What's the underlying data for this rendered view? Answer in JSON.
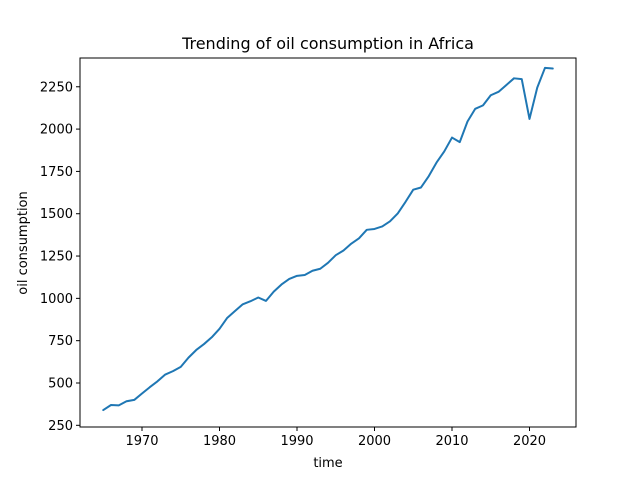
{
  "chart_data": {
    "type": "line",
    "title": "Trending of oil consumption in Africa",
    "xlabel": "time",
    "ylabel": "oil consumption",
    "xlim": [
      1962,
      2026
    ],
    "ylim": [
      240,
      2420
    ],
    "xticks": [
      1970,
      1980,
      1990,
      2000,
      2010,
      2020
    ],
    "yticks": [
      250,
      500,
      750,
      1000,
      1250,
      1500,
      1750,
      2000,
      2250
    ],
    "grid": false,
    "line_color": "#1f77b4",
    "series": [
      {
        "x": [
          1965,
          1966,
          1967,
          1968,
          1969,
          1970,
          1971,
          1972,
          1973,
          1974,
          1975,
          1976,
          1977,
          1978,
          1979,
          1980,
          1981,
          1982,
          1983,
          1984,
          1985,
          1986,
          1987,
          1988,
          1989,
          1990,
          1991,
          1992,
          1993,
          1994,
          1995,
          1996,
          1997,
          1998,
          1999,
          2000,
          2001,
          2002,
          2003,
          2004,
          2005,
          2006,
          2007,
          2008,
          2009,
          2010,
          2011,
          2012,
          2013,
          2014,
          2015,
          2016,
          2017,
          2018,
          2019,
          2020,
          2021,
          2022,
          2023
        ],
        "values": [
          340,
          370,
          368,
          392,
          400,
          438,
          475,
          510,
          550,
          570,
          595,
          650,
          695,
          730,
          770,
          820,
          885,
          925,
          965,
          983,
          1005,
          985,
          1040,
          1082,
          1115,
          1133,
          1138,
          1163,
          1175,
          1210,
          1255,
          1283,
          1323,
          1355,
          1405,
          1410,
          1425,
          1455,
          1502,
          1570,
          1642,
          1655,
          1722,
          1802,
          1868,
          1950,
          1923,
          2045,
          2120,
          2140,
          2200,
          2220,
          2260,
          2300,
          2295,
          2060,
          2245,
          2362,
          2358
        ]
      }
    ]
  }
}
